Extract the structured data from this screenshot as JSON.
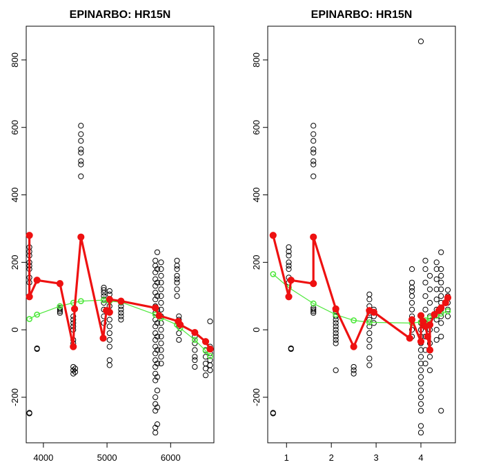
{
  "chart_data": [
    {
      "type": "scatter",
      "title": "EPINARBO: HR15N",
      "xlabel": "",
      "ylabel": "",
      "xlim": [
        3730,
        6680
      ],
      "ylim": [
        -335,
        900
      ],
      "xticks": [
        4000,
        5000,
        6000
      ],
      "yticks": [
        -200,
        0,
        200,
        400,
        600,
        800
      ],
      "grid": false,
      "points": [
        [
          3780,
          -248
        ],
        [
          3780,
          -246
        ],
        [
          3780,
          98
        ],
        [
          3780,
          140
        ],
        [
          3780,
          155
        ],
        [
          3780,
          180
        ],
        [
          3780,
          190
        ],
        [
          3780,
          200
        ],
        [
          3780,
          220
        ],
        [
          3780,
          232
        ],
        [
          3780,
          245
        ],
        [
          3900,
          -57
        ],
        [
          3900,
          -55
        ],
        [
          4260,
          50
        ],
        [
          4260,
          55
        ],
        [
          4260,
          60
        ],
        [
          4260,
          65
        ],
        [
          4470,
          -130
        ],
        [
          4470,
          -120
        ],
        [
          4470,
          -110
        ],
        [
          4470,
          -40
        ],
        [
          4470,
          -30
        ],
        [
          4470,
          0
        ],
        [
          4470,
          10
        ],
        [
          4470,
          20
        ],
        [
          4470,
          30
        ],
        [
          4470,
          40
        ],
        [
          4500,
          -125
        ],
        [
          4500,
          -115
        ],
        [
          4590,
          455
        ],
        [
          4590,
          490
        ],
        [
          4590,
          500
        ],
        [
          4590,
          525
        ],
        [
          4590,
          535
        ],
        [
          4590,
          560
        ],
        [
          4590,
          580
        ],
        [
          4590,
          605
        ],
        [
          4950,
          20
        ],
        [
          4950,
          40
        ],
        [
          4950,
          60
        ],
        [
          4950,
          80
        ],
        [
          4950,
          90
        ],
        [
          4950,
          100
        ],
        [
          4950,
          110
        ],
        [
          4950,
          118
        ],
        [
          4950,
          125
        ],
        [
          5040,
          -105
        ],
        [
          5040,
          -90
        ],
        [
          5040,
          -50
        ],
        [
          5040,
          -30
        ],
        [
          5040,
          -10
        ],
        [
          5040,
          10
        ],
        [
          5040,
          30
        ],
        [
          5040,
          50
        ],
        [
          5040,
          70
        ],
        [
          5040,
          90
        ],
        [
          5040,
          105
        ],
        [
          5040,
          115
        ],
        [
          5220,
          30
        ],
        [
          5220,
          40
        ],
        [
          5220,
          50
        ],
        [
          5220,
          60
        ],
        [
          5220,
          70
        ],
        [
          5220,
          80
        ],
        [
          5760,
          -305
        ],
        [
          5760,
          -290
        ],
        [
          5760,
          -240
        ],
        [
          5760,
          -220
        ],
        [
          5760,
          -200
        ],
        [
          5760,
          -150
        ],
        [
          5760,
          -130
        ],
        [
          5760,
          -110
        ],
        [
          5760,
          -90
        ],
        [
          5760,
          -70
        ],
        [
          5760,
          -50
        ],
        [
          5760,
          -30
        ],
        [
          5760,
          -10
        ],
        [
          5760,
          10
        ],
        [
          5760,
          30
        ],
        [
          5760,
          50
        ],
        [
          5760,
          70
        ],
        [
          5760,
          90
        ],
        [
          5760,
          110
        ],
        [
          5760,
          130
        ],
        [
          5760,
          150
        ],
        [
          5760,
          170
        ],
        [
          5760,
          190
        ],
        [
          5760,
          205
        ],
        [
          5790,
          -280
        ],
        [
          5790,
          -230
        ],
        [
          5790,
          -180
        ],
        [
          5790,
          -140
        ],
        [
          5790,
          -100
        ],
        [
          5790,
          -60
        ],
        [
          5790,
          -20
        ],
        [
          5790,
          20
        ],
        [
          5790,
          60
        ],
        [
          5790,
          100
        ],
        [
          5790,
          140
        ],
        [
          5790,
          180
        ],
        [
          5790,
          230
        ],
        [
          5850,
          -100
        ],
        [
          5850,
          -80
        ],
        [
          5850,
          -60
        ],
        [
          5850,
          -40
        ],
        [
          5850,
          -20
        ],
        [
          5850,
          0
        ],
        [
          5850,
          20
        ],
        [
          5850,
          40
        ],
        [
          5850,
          60
        ],
        [
          5850,
          80
        ],
        [
          5850,
          100
        ],
        [
          5850,
          120
        ],
        [
          5850,
          140
        ],
        [
          5850,
          160
        ],
        [
          5850,
          180
        ],
        [
          5850,
          200
        ],
        [
          6100,
          100
        ],
        [
          6100,
          120
        ],
        [
          6100,
          140
        ],
        [
          6100,
          150
        ],
        [
          6100,
          160
        ],
        [
          6100,
          180
        ],
        [
          6100,
          190
        ],
        [
          6100,
          205
        ],
        [
          6130,
          -30
        ],
        [
          6130,
          -10
        ],
        [
          6130,
          10
        ],
        [
          6130,
          30
        ],
        [
          6130,
          40
        ],
        [
          6380,
          -110
        ],
        [
          6380,
          -90
        ],
        [
          6380,
          -80
        ],
        [
          6380,
          -60
        ],
        [
          6380,
          -40
        ],
        [
          6380,
          -20
        ],
        [
          6550,
          -135
        ],
        [
          6550,
          -115
        ],
        [
          6550,
          -100
        ],
        [
          6550,
          -80
        ],
        [
          6550,
          -60
        ],
        [
          6620,
          -120
        ],
        [
          6620,
          -105
        ],
        [
          6620,
          -90
        ],
        [
          6620,
          -70
        ],
        [
          6620,
          -50
        ],
        [
          6620,
          25
        ]
      ],
      "red_line": [
        [
          3780,
          280
        ],
        [
          3780,
          98
        ],
        [
          3900,
          147
        ],
        [
          4260,
          137
        ],
        [
          4470,
          -50
        ],
        [
          4490,
          62
        ],
        [
          4590,
          275
        ],
        [
          4940,
          -25
        ],
        [
          4990,
          57
        ],
        [
          5040,
          52
        ],
        [
          5040,
          90
        ],
        [
          5220,
          85
        ],
        [
          5760,
          65
        ],
        [
          5820,
          42
        ],
        [
          6120,
          25
        ],
        [
          6150,
          15
        ],
        [
          6380,
          -8
        ],
        [
          6550,
          -35
        ],
        [
          6620,
          -57
        ]
      ],
      "green_line": [
        [
          3780,
          32
        ],
        [
          3900,
          45
        ],
        [
          4260,
          70
        ],
        [
          4470,
          80
        ],
        [
          4590,
          85
        ],
        [
          4950,
          88
        ],
        [
          5040,
          85
        ],
        [
          5220,
          82
        ],
        [
          5760,
          45
        ],
        [
          5850,
          35
        ],
        [
          6100,
          15
        ],
        [
          6150,
          5
        ],
        [
          6380,
          -30
        ],
        [
          6550,
          -62
        ],
        [
          6620,
          -78
        ]
      ]
    },
    {
      "type": "scatter",
      "title": "EPINARBO: HR15N",
      "xlabel": "",
      "ylabel": "",
      "xlim": [
        0.58,
        4.77
      ],
      "ylim": [
        -335,
        900
      ],
      "xticks": [
        1,
        2,
        3,
        4
      ],
      "yticks": [
        -200,
        0,
        200,
        400,
        600,
        800
      ],
      "grid": false,
      "points": [
        [
          0.7,
          -248
        ],
        [
          0.7,
          -246
        ],
        [
          1.05,
          98
        ],
        [
          1.05,
          140
        ],
        [
          1.05,
          155
        ],
        [
          1.05,
          180
        ],
        [
          1.05,
          190
        ],
        [
          1.05,
          200
        ],
        [
          1.05,
          220
        ],
        [
          1.05,
          232
        ],
        [
          1.05,
          245
        ],
        [
          1.1,
          -57
        ],
        [
          1.1,
          -55
        ],
        [
          1.6,
          50
        ],
        [
          1.6,
          55
        ],
        [
          1.6,
          60
        ],
        [
          1.6,
          65
        ],
        [
          1.6,
          455
        ],
        [
          1.6,
          490
        ],
        [
          1.6,
          500
        ],
        [
          1.6,
          525
        ],
        [
          1.6,
          535
        ],
        [
          1.6,
          560
        ],
        [
          1.6,
          580
        ],
        [
          1.6,
          605
        ],
        [
          2.1,
          -120
        ],
        [
          2.1,
          -40
        ],
        [
          2.1,
          -30
        ],
        [
          2.1,
          -20
        ],
        [
          2.1,
          -10
        ],
        [
          2.1,
          0
        ],
        [
          2.1,
          10
        ],
        [
          2.1,
          20
        ],
        [
          2.1,
          30
        ],
        [
          2.1,
          40
        ],
        [
          2.1,
          55
        ],
        [
          2.5,
          -130
        ],
        [
          2.5,
          -120
        ],
        [
          2.5,
          -110
        ],
        [
          2.85,
          -105
        ],
        [
          2.85,
          -85
        ],
        [
          2.85,
          -50
        ],
        [
          2.85,
          -30
        ],
        [
          2.85,
          -10
        ],
        [
          2.85,
          10
        ],
        [
          2.85,
          30
        ],
        [
          2.85,
          50
        ],
        [
          2.85,
          70
        ],
        [
          2.85,
          90
        ],
        [
          2.85,
          105
        ],
        [
          2.95,
          20
        ],
        [
          2.95,
          40
        ],
        [
          2.95,
          60
        ],
        [
          3.8,
          -20
        ],
        [
          3.8,
          0
        ],
        [
          3.8,
          20
        ],
        [
          3.8,
          40
        ],
        [
          3.8,
          60
        ],
        [
          3.8,
          80
        ],
        [
          3.8,
          100
        ],
        [
          3.8,
          115
        ],
        [
          3.8,
          125
        ],
        [
          3.8,
          140
        ],
        [
          3.8,
          180
        ],
        [
          4.0,
          -305
        ],
        [
          4.0,
          -285
        ],
        [
          4.0,
          -240
        ],
        [
          4.0,
          -220
        ],
        [
          4.0,
          -200
        ],
        [
          4.0,
          -180
        ],
        [
          4.0,
          -160
        ],
        [
          4.0,
          -140
        ],
        [
          4.0,
          -120
        ],
        [
          4.0,
          -100
        ],
        [
          4.0,
          -80
        ],
        [
          4.0,
          -60
        ],
        [
          4.0,
          -40
        ],
        [
          4.0,
          -20
        ],
        [
          4.0,
          0
        ],
        [
          4.0,
          20
        ],
        [
          4.0,
          40
        ],
        [
          4.0,
          855
        ],
        [
          4.1,
          -100
        ],
        [
          4.1,
          -60
        ],
        [
          4.1,
          -20
        ],
        [
          4.1,
          20
        ],
        [
          4.1,
          60
        ],
        [
          4.1,
          100
        ],
        [
          4.1,
          140
        ],
        [
          4.1,
          180
        ],
        [
          4.1,
          205
        ],
        [
          4.2,
          -120
        ],
        [
          4.2,
          -80
        ],
        [
          4.2,
          -40
        ],
        [
          4.2,
          0
        ],
        [
          4.2,
          40
        ],
        [
          4.2,
          80
        ],
        [
          4.2,
          120
        ],
        [
          4.2,
          160
        ],
        [
          4.35,
          -30
        ],
        [
          4.35,
          0
        ],
        [
          4.35,
          30
        ],
        [
          4.35,
          60
        ],
        [
          4.35,
          90
        ],
        [
          4.35,
          120
        ],
        [
          4.35,
          150
        ],
        [
          4.35,
          180
        ],
        [
          4.35,
          200
        ],
        [
          4.45,
          -240
        ],
        [
          4.45,
          -20
        ],
        [
          4.45,
          20
        ],
        [
          4.45,
          40
        ],
        [
          4.45,
          60
        ],
        [
          4.45,
          80
        ],
        [
          4.45,
          100
        ],
        [
          4.45,
          120
        ],
        [
          4.45,
          140
        ],
        [
          4.45,
          160
        ],
        [
          4.45,
          180
        ],
        [
          4.45,
          230
        ],
        [
          4.6,
          40
        ],
        [
          4.6,
          60
        ],
        [
          4.6,
          80
        ],
        [
          4.6,
          100
        ],
        [
          4.6,
          118
        ]
      ],
      "red_line": [
        [
          0.7,
          280
        ],
        [
          1.05,
          98
        ],
        [
          1.1,
          147
        ],
        [
          1.6,
          137
        ],
        [
          1.6,
          275
        ],
        [
          2.1,
          62
        ],
        [
          2.5,
          -50
        ],
        [
          2.85,
          57
        ],
        [
          2.95,
          52
        ],
        [
          3.75,
          -25
        ],
        [
          3.8,
          30
        ],
        [
          4.0,
          -35
        ],
        [
          4.0,
          42
        ],
        [
          4.05,
          25
        ],
        [
          4.1,
          10
        ],
        [
          4.15,
          -20
        ],
        [
          4.2,
          -60
        ],
        [
          4.2,
          15
        ],
        [
          4.3,
          45
        ],
        [
          4.4,
          57
        ],
        [
          4.45,
          65
        ],
        [
          4.55,
          80
        ],
        [
          4.6,
          95
        ]
      ],
      "green_line": [
        [
          0.7,
          165
        ],
        [
          1.05,
          125
        ],
        [
          1.6,
          78
        ],
        [
          2.1,
          45
        ],
        [
          2.5,
          28
        ],
        [
          2.85,
          22
        ],
        [
          3.8,
          20
        ],
        [
          4.0,
          23
        ],
        [
          4.1,
          28
        ],
        [
          4.2,
          35
        ],
        [
          4.35,
          42
        ],
        [
          4.45,
          48
        ],
        [
          4.6,
          55
        ]
      ]
    }
  ]
}
